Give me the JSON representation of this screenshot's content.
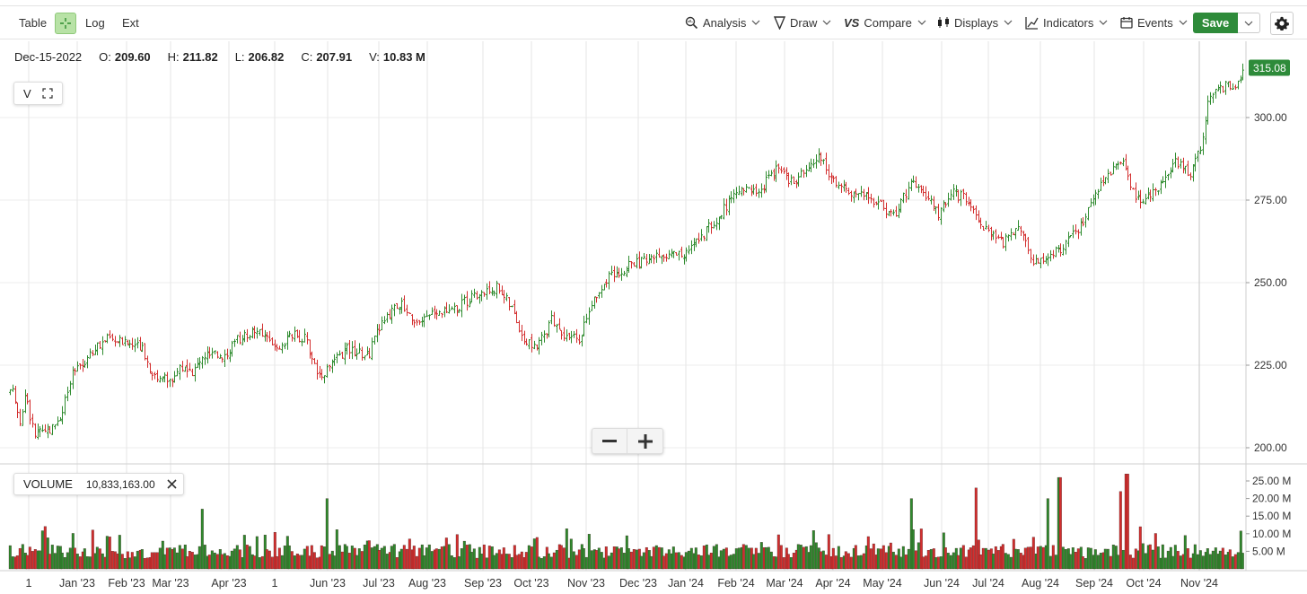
{
  "toolbar": {
    "table_label": "Table",
    "log_label": "Log",
    "ext_label": "Ext",
    "analysis_label": "Analysis",
    "draw_label": "Draw",
    "compare_label": "Compare",
    "displays_label": "Displays",
    "indicators_label": "Indicators",
    "events_label": "Events",
    "save_label": "Save"
  },
  "ohlc": {
    "date": "Dec-15-2022",
    "open_label": "O:",
    "open": "209.60",
    "high_label": "H:",
    "high": "211.82",
    "low_label": "L:",
    "low": "206.82",
    "close_label": "C:",
    "close": "207.91",
    "volume_label": "V:",
    "volume": "10.83 M"
  },
  "v_box": {
    "label": "V"
  },
  "volume_panel": {
    "label": "VOLUME",
    "value": "10,833,163.00"
  },
  "colors": {
    "up": "#2e8b2e",
    "down": "#d32f2f",
    "save": "#2e8b3a",
    "last_price": "#2e8b3a"
  },
  "chart_data": {
    "type": "candlestick-ohlc",
    "last_price": "315.08",
    "price_ticks": [
      "300.00",
      "275.00",
      "250.00",
      "225.00",
      "200.00"
    ],
    "volume_ticks": [
      "25.00 M",
      "20.00 M",
      "15.00 M",
      "10.00 M",
      "5.00 M"
    ],
    "x_labels": [
      "1",
      "Jan '23",
      "Feb '23",
      "Mar '23",
      "Apr '23",
      "1",
      "Jun '23",
      "Jul '23",
      "Aug '23",
      "Sep '23",
      "Oct '23",
      "Nov '23",
      "Dec '23",
      "Jan '24",
      "Feb '24",
      "Mar '24",
      "Apr '24",
      "May '24",
      "Jun '24",
      "Jul '24",
      "Aug '24",
      "Sep '24",
      "Oct '24",
      "Nov '24"
    ],
    "ylim": [
      195,
      318
    ],
    "vol_ylim": [
      0,
      29
    ],
    "price_path": [
      {
        "d": 0,
        "p": 210
      },
      {
        "d": 14,
        "p": 218
      },
      {
        "d": 22,
        "p": 208
      },
      {
        "d": 28,
        "p": 216
      },
      {
        "d": 38,
        "p": 204
      },
      {
        "d": 55,
        "p": 205
      },
      {
        "d": 68,
        "p": 210
      },
      {
        "d": 80,
        "p": 222
      },
      {
        "d": 100,
        "p": 228
      },
      {
        "d": 118,
        "p": 233
      },
      {
        "d": 138,
        "p": 232
      },
      {
        "d": 158,
        "p": 230
      },
      {
        "d": 170,
        "p": 222
      },
      {
        "d": 190,
        "p": 220
      },
      {
        "d": 200,
        "p": 225
      },
      {
        "d": 212,
        "p": 222
      },
      {
        "d": 228,
        "p": 228
      },
      {
        "d": 250,
        "p": 228
      },
      {
        "d": 265,
        "p": 233
      },
      {
        "d": 285,
        "p": 236
      },
      {
        "d": 300,
        "p": 232
      },
      {
        "d": 310,
        "p": 229
      },
      {
        "d": 325,
        "p": 234
      },
      {
        "d": 340,
        "p": 233
      },
      {
        "d": 355,
        "p": 222
      },
      {
        "d": 370,
        "p": 225
      },
      {
        "d": 385,
        "p": 230
      },
      {
        "d": 410,
        "p": 228
      },
      {
        "d": 425,
        "p": 238
      },
      {
        "d": 445,
        "p": 244
      },
      {
        "d": 465,
        "p": 238
      },
      {
        "d": 490,
        "p": 241
      },
      {
        "d": 510,
        "p": 243
      },
      {
        "d": 530,
        "p": 246
      },
      {
        "d": 555,
        "p": 249
      },
      {
        "d": 570,
        "p": 242
      },
      {
        "d": 585,
        "p": 232
      },
      {
        "d": 600,
        "p": 231
      },
      {
        "d": 615,
        "p": 239
      },
      {
        "d": 630,
        "p": 234
      },
      {
        "d": 645,
        "p": 233
      },
      {
        "d": 660,
        "p": 245
      },
      {
        "d": 680,
        "p": 252
      },
      {
        "d": 700,
        "p": 255
      },
      {
        "d": 720,
        "p": 257
      },
      {
        "d": 745,
        "p": 259
      },
      {
        "d": 765,
        "p": 259
      },
      {
        "d": 785,
        "p": 265
      },
      {
        "d": 805,
        "p": 272
      },
      {
        "d": 825,
        "p": 278
      },
      {
        "d": 845,
        "p": 278
      },
      {
        "d": 865,
        "p": 284
      },
      {
        "d": 885,
        "p": 280
      },
      {
        "d": 912,
        "p": 289
      },
      {
        "d": 930,
        "p": 280
      },
      {
        "d": 950,
        "p": 277
      },
      {
        "d": 975,
        "p": 275
      },
      {
        "d": 995,
        "p": 270
      },
      {
        "d": 1015,
        "p": 280
      },
      {
        "d": 1030,
        "p": 277
      },
      {
        "d": 1045,
        "p": 271
      },
      {
        "d": 1062,
        "p": 277
      },
      {
        "d": 1080,
        "p": 275
      },
      {
        "d": 1100,
        "p": 265
      },
      {
        "d": 1118,
        "p": 262
      },
      {
        "d": 1135,
        "p": 268
      },
      {
        "d": 1150,
        "p": 256
      },
      {
        "d": 1165,
        "p": 258
      },
      {
        "d": 1185,
        "p": 261
      },
      {
        "d": 1205,
        "p": 268
      },
      {
        "d": 1225,
        "p": 280
      },
      {
        "d": 1250,
        "p": 288
      },
      {
        "d": 1265,
        "p": 275
      },
      {
        "d": 1285,
        "p": 277
      },
      {
        "d": 1310,
        "p": 287
      },
      {
        "d": 1326,
        "p": 283
      },
      {
        "d": 1338,
        "p": 292
      },
      {
        "d": 1346,
        "p": 306
      },
      {
        "d": 1360,
        "p": 309
      },
      {
        "d": 1375,
        "p": 310
      },
      {
        "d": 1386,
        "p": 315
      }
    ],
    "volume_spikes": [
      {
        "d": 225,
        "v": 17
      },
      {
        "d": 363,
        "v": 20
      },
      {
        "d": 1015,
        "v": 20
      },
      {
        "d": 1088,
        "v": 23
      },
      {
        "d": 1168,
        "v": 20
      },
      {
        "d": 1180,
        "v": 26
      },
      {
        "d": 1255,
        "v": 27
      },
      {
        "d": 1247,
        "v": 22
      }
    ]
  }
}
